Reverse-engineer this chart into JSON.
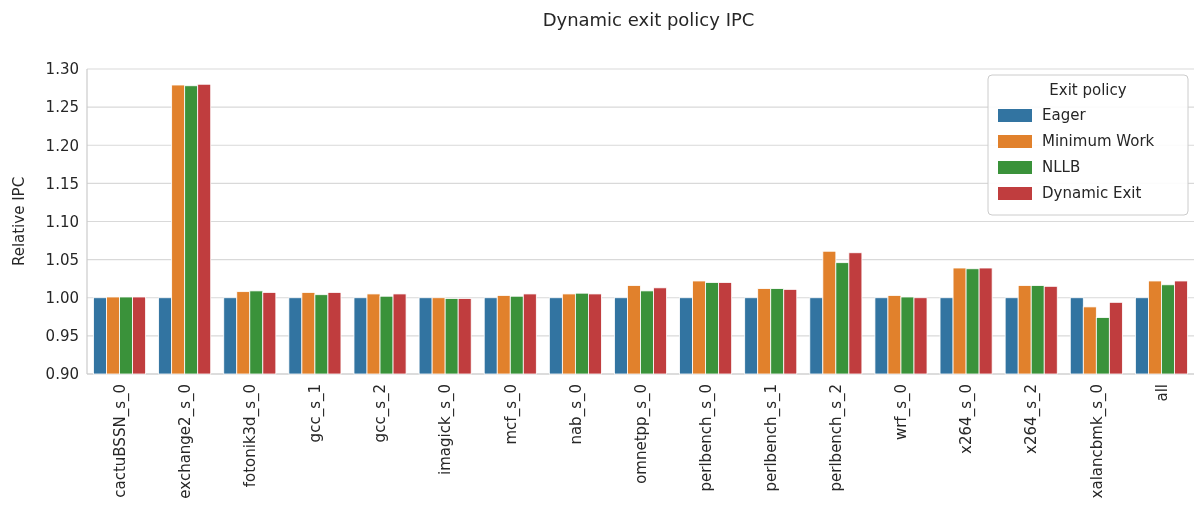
{
  "chart_data": {
    "type": "bar",
    "title": "Dynamic exit policy IPC",
    "ylabel": "Relative IPC",
    "legend_title": "Exit policy",
    "legend": "top right",
    "grid": "y",
    "categories": [
      "cactuBSSN_s_0",
      "exchange2_s_0",
      "fotonik3d_s_0",
      "gcc_s_1",
      "gcc_s_2",
      "imagick_s_0",
      "mcf_s_0",
      "nab_s_0",
      "omnetpp_s_0",
      "perlbench_s_0",
      "perlbench_s_1",
      "perlbench_s_2",
      "wrf_s_0",
      "x264_s_0",
      "x264_s_2",
      "xalancbmk_s_0",
      "all"
    ],
    "ylim": [
      0.9,
      1.3
    ],
    "yticks": [
      {
        "value": 0.9,
        "label": "0.90"
      },
      {
        "value": 0.95,
        "label": "0.95"
      },
      {
        "value": 1.0,
        "label": "1.00"
      },
      {
        "value": 1.05,
        "label": "1.05"
      },
      {
        "value": 1.1,
        "label": "1.10"
      },
      {
        "value": 1.15,
        "label": "1.15"
      },
      {
        "value": 1.2,
        "label": "1.20"
      },
      {
        "value": 1.25,
        "label": "1.25"
      },
      {
        "value": 1.3,
        "label": "1.30"
      }
    ],
    "series": [
      {
        "name": "Eager",
        "color": "#3274a1",
        "values": [
          1.0,
          1.0,
          1.0,
          1.0,
          1.0,
          1.0,
          1.0,
          1.0,
          1.0,
          1.0,
          1.0,
          1.0,
          1.0,
          1.0,
          1.0,
          1.0,
          1.0
        ]
      },
      {
        "name": "Minimum Work",
        "color": "#e1812c",
        "values": [
          1.001,
          1.279,
          1.008,
          1.007,
          1.005,
          1.0,
          1.003,
          1.005,
          1.016,
          1.022,
          1.012,
          1.061,
          1.003,
          1.039,
          1.016,
          0.988,
          1.022
        ]
      },
      {
        "name": "NLLB",
        "color": "#3a923a",
        "values": [
          1.001,
          1.278,
          1.009,
          1.004,
          1.002,
          0.999,
          1.002,
          1.006,
          1.009,
          1.02,
          1.012,
          1.046,
          1.001,
          1.038,
          1.016,
          0.974,
          1.017
        ]
      },
      {
        "name": "Dynamic Exit",
        "color": "#c03d3e",
        "values": [
          1.001,
          1.28,
          1.007,
          1.007,
          1.005,
          0.999,
          1.005,
          1.005,
          1.013,
          1.02,
          1.011,
          1.059,
          1.0,
          1.039,
          1.015,
          0.994,
          1.022
        ]
      }
    ]
  }
}
